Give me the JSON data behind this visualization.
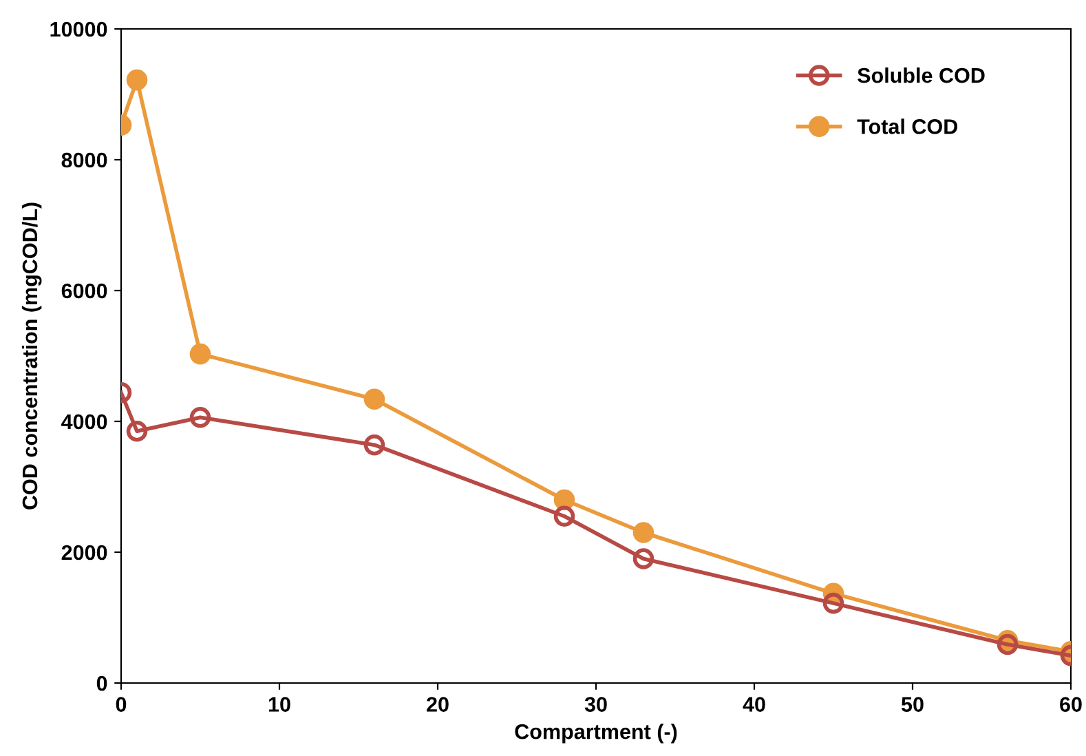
{
  "chart_data": {
    "type": "line",
    "xlabel": "Compartment (-)",
    "ylabel": "COD concentration (mgCOD/L)",
    "x": [
      0,
      1,
      5,
      16,
      28,
      33,
      45,
      56,
      60
    ],
    "series": [
      {
        "name": "Soluble COD",
        "color": "#b84a45",
        "values": [
          4440,
          3850,
          4060,
          3640,
          2550,
          1900,
          1220,
          590,
          420
        ]
      },
      {
        "name": "Total COD",
        "color": "#eb9a3c",
        "values": [
          8530,
          9220,
          5030,
          4340,
          2800,
          2300,
          1370,
          650,
          480
        ]
      }
    ],
    "xlim": [
      0,
      60
    ],
    "xticks": [
      0,
      10,
      20,
      30,
      40,
      50,
      60
    ],
    "ylim": [
      0,
      10000
    ],
    "yticks": [
      0,
      2000,
      4000,
      6000,
      8000,
      10000
    ],
    "grid": false,
    "legend": "top right",
    "marker": "circle",
    "line_style": "solid"
  }
}
